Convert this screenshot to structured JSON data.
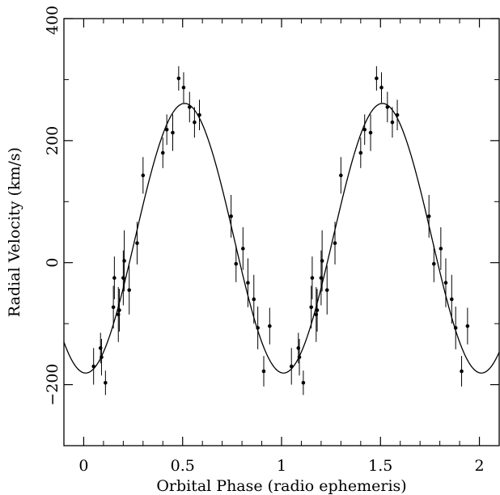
{
  "chart_data": {
    "type": "scatter",
    "title": "",
    "xlabel": "Orbital Phase (radio ephemeris)",
    "ylabel": "Radial Velocity (km/s)",
    "xlim": [
      -0.1,
      2.1
    ],
    "ylim": [
      -300,
      400
    ],
    "x_ticks": [
      "0",
      "0.5",
      "1",
      "1.5",
      "2"
    ],
    "y_ticks": [
      "−200",
      "0",
      "200",
      "400"
    ],
    "x_tick_values": [
      0,
      0.5,
      1,
      1.5,
      2
    ],
    "y_tick_values": [
      -200,
      0,
      200,
      400
    ],
    "x_minor_tick_values": [
      -0.1,
      0.1,
      0.2,
      0.3,
      0.4,
      0.6,
      0.7,
      0.8,
      0.9,
      1.1,
      1.2,
      1.3,
      1.4,
      1.6,
      1.7,
      1.8,
      1.9,
      2.1
    ],
    "y_minor_tick_values": [
      -300,
      -100,
      100,
      300
    ],
    "fit_curve": {
      "type": "sinusoid",
      "gamma_kms": 40,
      "semi_amplitude_kms": 221,
      "phase_of_maximum": 0.51,
      "period_in_phase": 1
    },
    "series": [
      {
        "points": [
          {
            "x": 0.05,
            "y": -170,
            "err": 30
          },
          {
            "x": 0.085,
            "y": -140,
            "err": 25
          },
          {
            "x": 0.09,
            "y": -155,
            "err": 30
          },
          {
            "x": 0.11,
            "y": -197,
            "err": 20
          },
          {
            "x": 0.15,
            "y": -73,
            "err": 35
          },
          {
            "x": 0.155,
            "y": -25,
            "err": 35
          },
          {
            "x": 0.175,
            "y": -85,
            "err": 45
          },
          {
            "x": 0.18,
            "y": -78,
            "err": 35
          },
          {
            "x": 0.2,
            "y": -25,
            "err": 45
          },
          {
            "x": 0.205,
            "y": 3,
            "err": 50
          },
          {
            "x": 0.23,
            "y": -45,
            "err": 40
          },
          {
            "x": 0.27,
            "y": 32,
            "err": 35
          },
          {
            "x": 0.3,
            "y": 143,
            "err": 30
          },
          {
            "x": 0.4,
            "y": 180,
            "err": 25
          },
          {
            "x": 0.42,
            "y": 218,
            "err": 25
          },
          {
            "x": 0.45,
            "y": 213,
            "err": 30
          },
          {
            "x": 0.48,
            "y": 302,
            "err": 20
          },
          {
            "x": 0.505,
            "y": 287,
            "err": 25
          },
          {
            "x": 0.535,
            "y": 255,
            "err": 25
          },
          {
            "x": 0.56,
            "y": 230,
            "err": 25
          },
          {
            "x": 0.585,
            "y": 242,
            "err": 25
          },
          {
            "x": 0.745,
            "y": 76,
            "err": 35
          },
          {
            "x": 0.77,
            "y": -2,
            "err": 30
          },
          {
            "x": 0.805,
            "y": 23,
            "err": 35
          },
          {
            "x": 0.83,
            "y": -33,
            "err": 40
          },
          {
            "x": 0.86,
            "y": -60,
            "err": 40
          },
          {
            "x": 0.88,
            "y": -107,
            "err": 35
          },
          {
            "x": 0.91,
            "y": -178,
            "err": 25
          },
          {
            "x": 0.94,
            "y": -104,
            "err": 30
          }
        ]
      }
    ]
  }
}
